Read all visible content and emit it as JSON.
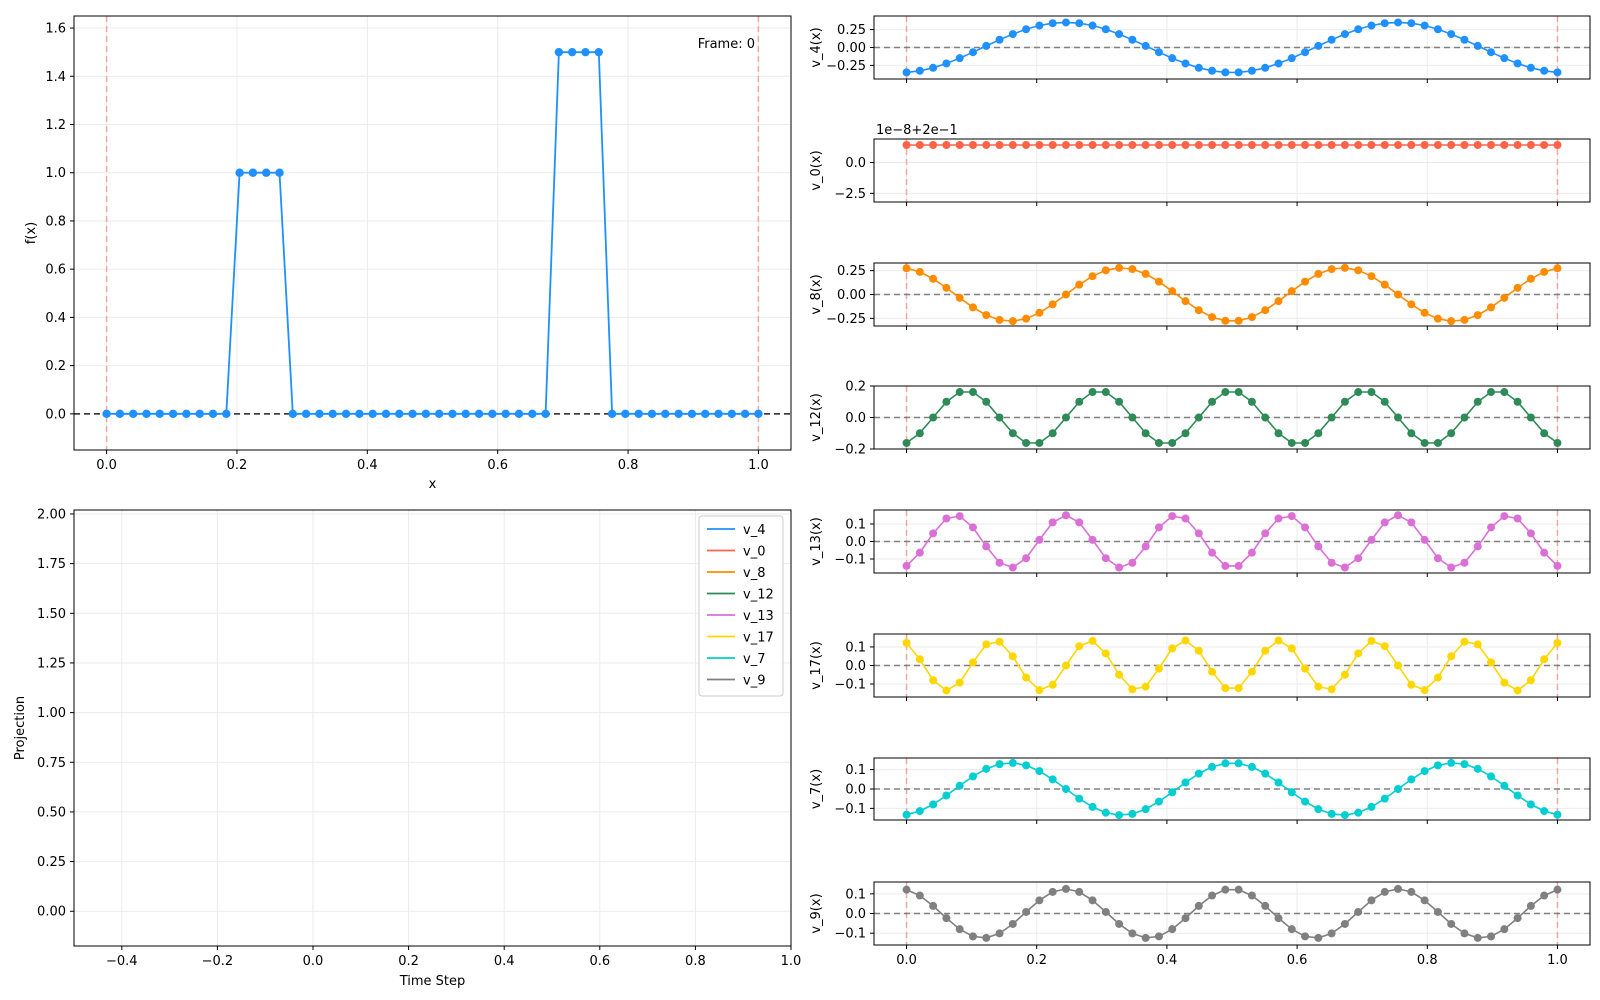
{
  "chart_data": [
    {
      "id": "main",
      "type": "line",
      "xlabel": "x",
      "ylabel": "f(x)",
      "xlim": [
        -0.05,
        1.05
      ],
      "ylim": [
        -0.15,
        1.65
      ],
      "xticks": [
        0.0,
        0.2,
        0.4,
        0.6,
        0.8,
        1.0
      ],
      "xtick_labels": [
        "0.0",
        "0.2",
        "0.4",
        "0.6",
        "0.8",
        "1.0"
      ],
      "yticks": [
        0.0,
        0.2,
        0.4,
        0.6,
        0.8,
        1.0,
        1.2,
        1.4,
        1.6
      ],
      "ytick_labels": [
        "0.0",
        "0.2",
        "0.4",
        "0.6",
        "0.8",
        "1.0",
        "1.2",
        "1.4",
        "1.6"
      ],
      "grid": true,
      "annotation": "Frame: 0",
      "vlines": [
        0.0,
        1.0
      ],
      "hline": 0.0,
      "series": [
        {
          "color": "#1e90ff",
          "x": [
            0.0,
            0.0204,
            0.0408,
            0.0612,
            0.0816,
            0.102,
            0.1224,
            0.1429,
            0.1633,
            0.1837,
            0.2041,
            0.2245,
            0.2449,
            0.2653,
            0.2857,
            0.3061,
            0.3265,
            0.3469,
            0.3673,
            0.3878,
            0.4082,
            0.4286,
            0.449,
            0.4694,
            0.4898,
            0.5102,
            0.5306,
            0.551,
            0.5714,
            0.5918,
            0.6122,
            0.6327,
            0.6531,
            0.6735,
            0.6939,
            0.7143,
            0.7347,
            0.7551,
            0.7755,
            0.7959,
            0.8163,
            0.8367,
            0.8571,
            0.8776,
            0.898,
            0.9184,
            0.9388,
            0.9592,
            0.9796,
            1.0
          ],
          "y": [
            0,
            0,
            0,
            0,
            0,
            0,
            0,
            0,
            0,
            0,
            1.0,
            1.0,
            1.0,
            1.0,
            0,
            0,
            0,
            0,
            0,
            0,
            0,
            0,
            0,
            0,
            0,
            0,
            0,
            0,
            0,
            0,
            0,
            0,
            0,
            0,
            1.5,
            1.5,
            1.5,
            1.5,
            0,
            0,
            0,
            0,
            0,
            0,
            0,
            0,
            0,
            0,
            0,
            0
          ]
        }
      ]
    },
    {
      "id": "projection",
      "type": "line",
      "xlabel": "Time Step",
      "ylabel": "Projection",
      "xlim": [
        -0.5,
        1.0
      ],
      "ylim": [
        -0.175,
        2.02
      ],
      "xticks": [
        -0.4,
        -0.2,
        0.0,
        0.2,
        0.4,
        0.6,
        0.8,
        1.0
      ],
      "xtick_labels": [
        "−0.4",
        "−0.2",
        "0.0",
        "0.2",
        "0.4",
        "0.6",
        "0.8",
        "1.0"
      ],
      "yticks": [
        0.0,
        0.25,
        0.5,
        0.75,
        1.0,
        1.25,
        1.5,
        1.75,
        2.0
      ],
      "ytick_labels": [
        "0.00",
        "0.25",
        "0.50",
        "0.75",
        "1.00",
        "1.25",
        "1.50",
        "1.75",
        "2.00"
      ],
      "grid": true,
      "legend_position": "top-right",
      "series": [
        {
          "name": "v_4",
          "color": "#1e90ff",
          "x": [],
          "y": []
        },
        {
          "name": "v_0",
          "color": "#ff6347",
          "x": [],
          "y": []
        },
        {
          "name": "v_8",
          "color": "#ff8c00",
          "x": [],
          "y": []
        },
        {
          "name": "v_12",
          "color": "#2e8b57",
          "x": [],
          "y": []
        },
        {
          "name": "v_13",
          "color": "#da70d6",
          "x": [],
          "y": []
        },
        {
          "name": "v_17",
          "color": "#ffd700",
          "x": [],
          "y": []
        },
        {
          "name": "v_7",
          "color": "#00ced1",
          "x": [],
          "y": []
        },
        {
          "name": "v_9",
          "color": "#808080",
          "x": [],
          "y": []
        }
      ]
    },
    {
      "id": "v4",
      "type": "line",
      "ylabel": "v_4(x)",
      "color": "#1e90ff",
      "ylim": [
        -0.44,
        0.44
      ],
      "yticks": [
        -0.25,
        0.0,
        0.25
      ],
      "ytick_labels": [
        "−0.25",
        "0.00",
        "0.25"
      ],
      "n_points": 50,
      "y_formula": "-0.35*cos(4*pi*(j+0.5)/50)",
      "hline": 0.0,
      "vlines": [
        0.0,
        1.0
      ],
      "grid": true
    },
    {
      "id": "v0",
      "type": "line",
      "ylabel": "v_0(x)",
      "color": "#ff6347",
      "ylim": [
        -3.2,
        1.9
      ],
      "yticks": [
        -2.5,
        0.0
      ],
      "ytick_labels": [
        "−2.5",
        "0.0"
      ],
      "offset_label": "1e−8+2e−1",
      "n_points": 50,
      "y_constant": 1.4142,
      "vlines": [
        0.0,
        1.0
      ],
      "grid": true
    },
    {
      "id": "v8",
      "type": "line",
      "ylabel": "v_8(x)",
      "color": "#ff8c00",
      "ylim": [
        -0.33,
        0.33
      ],
      "yticks": [
        -0.25,
        0.0,
        0.25
      ],
      "ytick_labels": [
        "−0.25",
        "0.00",
        "0.25"
      ],
      "n_points": 50,
      "y_formula": "0.28*cos(6*pi*(j+0.5)/50)",
      "hline": 0.0,
      "vlines": [
        0.0,
        1.0
      ],
      "grid": true
    },
    {
      "id": "v12",
      "type": "line",
      "ylabel": "v_12(x)",
      "color": "#2e8b57",
      "ylim": [
        -0.2,
        0.2
      ],
      "yticks": [
        -0.2,
        0.0,
        0.2
      ],
      "ytick_labels": [
        "−0.2",
        "0.0",
        "0.2"
      ],
      "n_points": 50,
      "y_formula": "-0.17*cos(10*pi*(j+0.5)/50)",
      "hline": 0.0,
      "vlines": [
        0.0,
        1.0
      ],
      "grid": true
    },
    {
      "id": "v13",
      "type": "line",
      "ylabel": "v_13(x)",
      "color": "#da70d6",
      "ylim": [
        -0.18,
        0.18
      ],
      "yticks": [
        -0.1,
        0.0,
        0.1
      ],
      "ytick_labels": [
        "−0.1",
        "0.0",
        "0.1"
      ],
      "n_points": 50,
      "y_formula": "-0.15*cos(12*pi*(j+0.5)/50)",
      "hline": 0.0,
      "vlines": [
        0.0,
        1.0
      ],
      "grid": true
    },
    {
      "id": "v17",
      "type": "line",
      "ylabel": "v_17(x)",
      "color": "#ffd700",
      "ylim": [
        -0.17,
        0.17
      ],
      "yticks": [
        -0.1,
        0.0,
        0.1
      ],
      "ytick_labels": [
        "−0.1",
        "0.0",
        "0.1"
      ],
      "n_points": 50,
      "y_formula": "0.135*cos(14*pi*(j+0.5)/50)",
      "hline": 0.0,
      "vlines": [
        0.0,
        1.0
      ],
      "grid": true
    },
    {
      "id": "v7",
      "type": "line",
      "ylabel": "v_7(x)",
      "color": "#00ced1",
      "ylim": [
        -0.16,
        0.16
      ],
      "yticks": [
        -0.1,
        0.0,
        0.1
      ],
      "ytick_labels": [
        "−0.1",
        "0.0",
        "0.1"
      ],
      "n_points": 50,
      "y_formula": "-0.135*cos(6*pi*(j+0.5)/50)",
      "hline": 0.0,
      "vlines": [
        0.0,
        1.0
      ],
      "grid": true
    },
    {
      "id": "v9",
      "type": "line",
      "ylabel": "v_9(x)",
      "color": "#808080",
      "ylim": [
        -0.16,
        0.16
      ],
      "yticks": [
        -0.1,
        0.0,
        0.1
      ],
      "ytick_labels": [
        "−0.1",
        "0.0",
        "0.1"
      ],
      "xticks": [
        0.0,
        0.2,
        0.4,
        0.6,
        0.8,
        1.0
      ],
      "xtick_labels": [
        "0.0",
        "0.2",
        "0.4",
        "0.6",
        "0.8",
        "1.0"
      ],
      "n_points": 50,
      "y_formula": "0.125*cos(8*pi*(j+0.5)/50)",
      "hline": 0.0,
      "vlines": [
        0.0,
        1.0
      ],
      "grid": true
    }
  ]
}
